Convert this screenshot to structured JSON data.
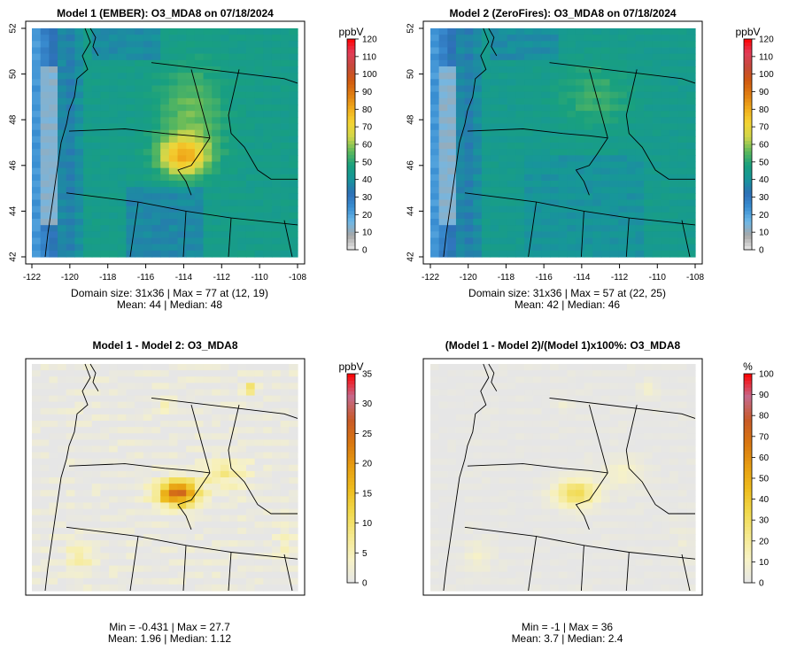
{
  "panels": [
    {
      "title": "Model 1 (EMBER): O3_MDA8 on 07/18/2024",
      "unit": "ppbV",
      "show_axes": true,
      "x_ticks": [
        "-122",
        "-120",
        "-118",
        "-116",
        "-114",
        "-112",
        "-110",
        "-108"
      ],
      "y_ticks": [
        "42",
        "44",
        "46",
        "48",
        "50",
        "52"
      ],
      "colorbar_ticks": [
        "0",
        "10",
        "20",
        "30",
        "40",
        "50",
        "60",
        "70",
        "80",
        "90",
        "100",
        "110",
        "120"
      ],
      "colorbar_range": [
        0,
        120
      ],
      "stats_line1": "Domain size: 31x36 | Max = 77 at (12, 19)",
      "stats_line2": "Mean: 44 |  Median: 48"
    },
    {
      "title": "Model 2 (ZeroFires): O3_MDA8 on 07/18/2024",
      "unit": "ppbV",
      "show_axes": true,
      "x_ticks": [
        "-122",
        "-120",
        "-118",
        "-116",
        "-114",
        "-112",
        "-110",
        "-108"
      ],
      "y_ticks": [
        "42",
        "44",
        "46",
        "48",
        "50",
        "52"
      ],
      "colorbar_ticks": [
        "0",
        "10",
        "20",
        "30",
        "40",
        "50",
        "60",
        "70",
        "80",
        "90",
        "100",
        "110",
        "120"
      ],
      "colorbar_range": [
        0,
        120
      ],
      "stats_line1": "Domain size: 31x36 | Max = 57 at (22, 25)",
      "stats_line2": "Mean: 42 |  Median: 46"
    },
    {
      "title": "Model 1 - Model 2: O3_MDA8",
      "unit": "ppbV",
      "show_axes": false,
      "colorbar_ticks": [
        "0",
        "5",
        "10",
        "15",
        "20",
        "25",
        "30",
        "35"
      ],
      "colorbar_range": [
        0,
        35
      ],
      "stats_line1": "Min = -0.431 | Max = 27.7",
      "stats_line2": "Mean: 1.96 |  Median: 1.12"
    },
    {
      "title": "(Model 1 - Model 2)/(Model 1)x100%: O3_MDA8",
      "unit": "%",
      "show_axes": false,
      "colorbar_ticks": [
        "0",
        "10",
        "20",
        "30",
        "40",
        "50",
        "60",
        "70",
        "80",
        "90",
        "100"
      ],
      "colorbar_range": [
        0,
        100
      ],
      "stats_line1": "Min = -1 | Max = 36",
      "stats_line2": "Mean: 3.7 |  Median: 2.4"
    }
  ],
  "chart_data": [
    {
      "type": "heatmap",
      "title": "Model 1 (EMBER): O3_MDA8 on 07/18/2024",
      "x_range": [
        -122,
        -108
      ],
      "y_range": [
        42,
        52
      ],
      "legend_title": "ppbV",
      "value_range": [
        0,
        120
      ],
      "grid_size": "31x36",
      "max": 77,
      "max_location": "(12, 19)",
      "mean": 44,
      "median": 48,
      "colors": [
        "#e6e6e6",
        "#a7a7a7",
        "#6eb8e8",
        "#3a8fd2",
        "#2d6fb7",
        "#17969a",
        "#18a07f",
        "#5fb95b",
        "#cfd64b",
        "#f4d534",
        "#f0ad1c",
        "#e07e12",
        "#d05a10",
        "#c44a3a",
        "#e23d5a",
        "#ff0000"
      ]
    },
    {
      "type": "heatmap",
      "title": "Model 2 (ZeroFires): O3_MDA8 on 07/18/2024",
      "x_range": [
        -122,
        -108
      ],
      "y_range": [
        42,
        52
      ],
      "legend_title": "ppbV",
      "value_range": [
        0,
        120
      ],
      "grid_size": "31x36",
      "max": 57,
      "max_location": "(22, 25)",
      "mean": 42,
      "median": 46
    },
    {
      "type": "heatmap",
      "title": "Model 1 - Model 2: O3_MDA8",
      "legend_title": "ppbV",
      "value_range": [
        0,
        35
      ],
      "min": -0.431,
      "max": 27.7,
      "mean": 1.96,
      "median": 1.12,
      "colors": [
        "#e6e6e6",
        "#f7f2c6",
        "#f5e98f",
        "#f1da4e",
        "#eebd1e",
        "#e79e12",
        "#d97710",
        "#c85a28",
        "#c56a8c",
        "#ff0000"
      ]
    },
    {
      "type": "heatmap",
      "title": "(Model 1 - Model 2)/(Model 1)x100%: O3_MDA8",
      "legend_title": "%",
      "value_range": [
        0,
        100
      ],
      "min": -1,
      "max": 36,
      "mean": 3.7,
      "median": 2.4
    }
  ]
}
